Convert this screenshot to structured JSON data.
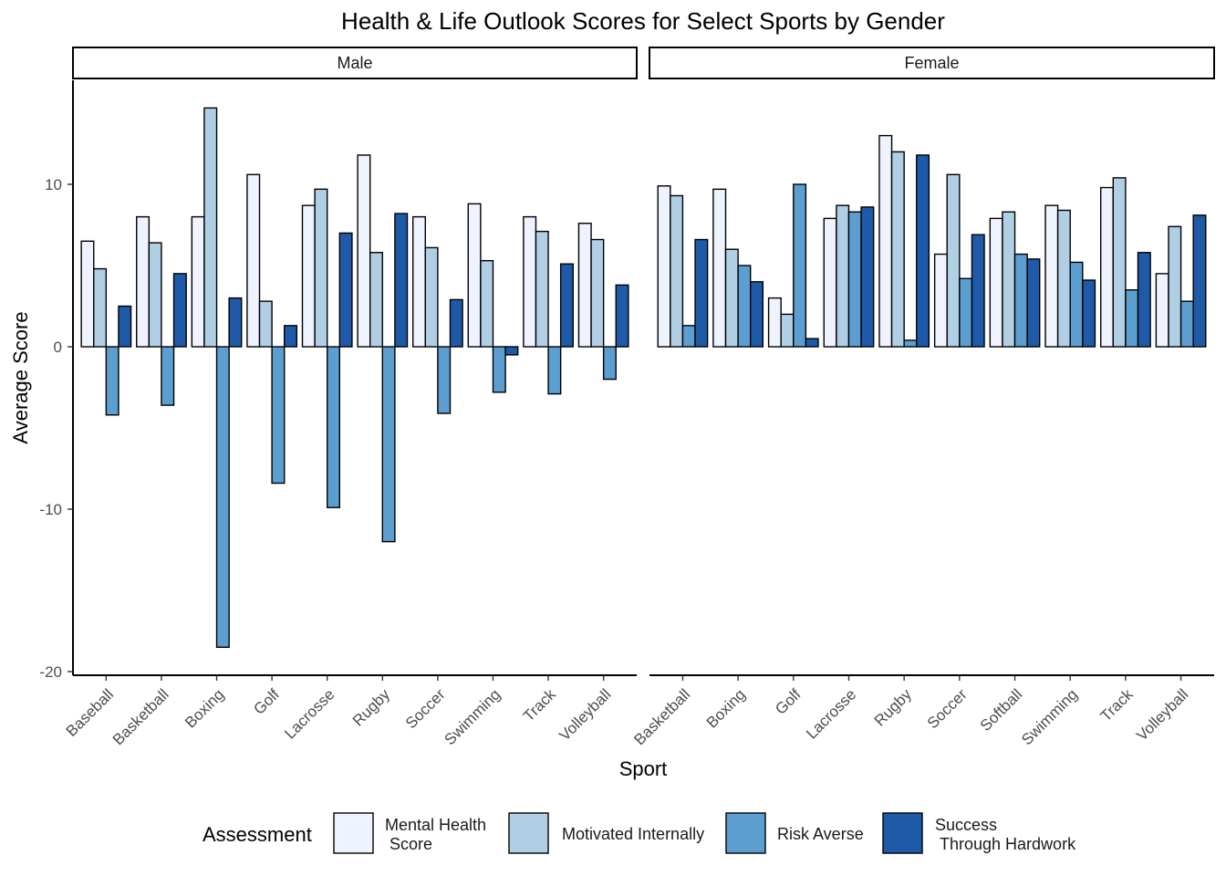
{
  "chart_data": {
    "type": "bar",
    "title": "Health & Life Outlook Scores for Select Sports by Gender",
    "xlabel": "Sport",
    "ylabel": "Average Score",
    "ylim": [
      -20,
      16
    ],
    "y_ticks": [
      "10",
      "0",
      "-10",
      "-20"
    ],
    "legend_title": "Assessment",
    "legend_position": "bottom",
    "series_meta": [
      {
        "name": "Mental Health\n Score",
        "color": "#eff3ff"
      },
      {
        "name": "Motivated Internally",
        "color": "#b0cfe4"
      },
      {
        "name": "Risk Averse",
        "color": "#5b9ecf"
      },
      {
        "name": "Success\n Through Hardwork",
        "color": "#1e5aa8"
      }
    ],
    "panels": [
      {
        "name": "Male",
        "categories": [
          "Baseball",
          "Basketball",
          "Boxing",
          "Golf",
          "Lacrosse",
          "Rugby",
          "Soccer",
          "Swimming",
          "Track",
          "Volleyball"
        ],
        "series": [
          {
            "name": "Mental Health\n Score",
            "values": [
              6.5,
              8.0,
              8.0,
              10.6,
              8.7,
              11.8,
              8.0,
              8.8,
              8.0,
              7.6
            ]
          },
          {
            "name": "Motivated Internally",
            "values": [
              4.8,
              6.4,
              14.7,
              2.8,
              9.7,
              5.8,
              6.1,
              5.3,
              7.1,
              6.6
            ]
          },
          {
            "name": "Risk Averse",
            "values": [
              -4.2,
              -3.6,
              -18.5,
              -8.4,
              -9.9,
              -12.0,
              -4.1,
              -2.8,
              -2.9,
              -2.0
            ]
          },
          {
            "name": "Success\n Through Hardwork",
            "values": [
              2.5,
              4.5,
              3.0,
              1.3,
              7.0,
              8.2,
              2.9,
              -0.5,
              5.1,
              3.8
            ]
          }
        ]
      },
      {
        "name": "Female",
        "categories": [
          "Basketball",
          "Boxing",
          "Golf",
          "Lacrosse",
          "Rugby",
          "Soccer",
          "Softball",
          "Swimming",
          "Track",
          "Volleyball"
        ],
        "series": [
          {
            "name": "Mental Health\n Score",
            "values": [
              9.9,
              9.7,
              3.0,
              7.9,
              13.0,
              5.7,
              7.9,
              8.7,
              9.8,
              4.5
            ]
          },
          {
            "name": "Motivated Internally",
            "values": [
              9.3,
              6.0,
              2.0,
              8.7,
              12.0,
              10.6,
              8.3,
              8.4,
              10.4,
              7.4
            ]
          },
          {
            "name": "Risk Averse",
            "values": [
              1.3,
              5.0,
              10.0,
              8.3,
              0.4,
              4.2,
              5.7,
              5.2,
              3.5,
              2.8
            ]
          },
          {
            "name": "Success\n Through Hardwork",
            "values": [
              6.6,
              4.0,
              0.5,
              8.6,
              11.8,
              6.9,
              5.4,
              4.1,
              5.8,
              8.1
            ]
          }
        ]
      }
    ]
  }
}
